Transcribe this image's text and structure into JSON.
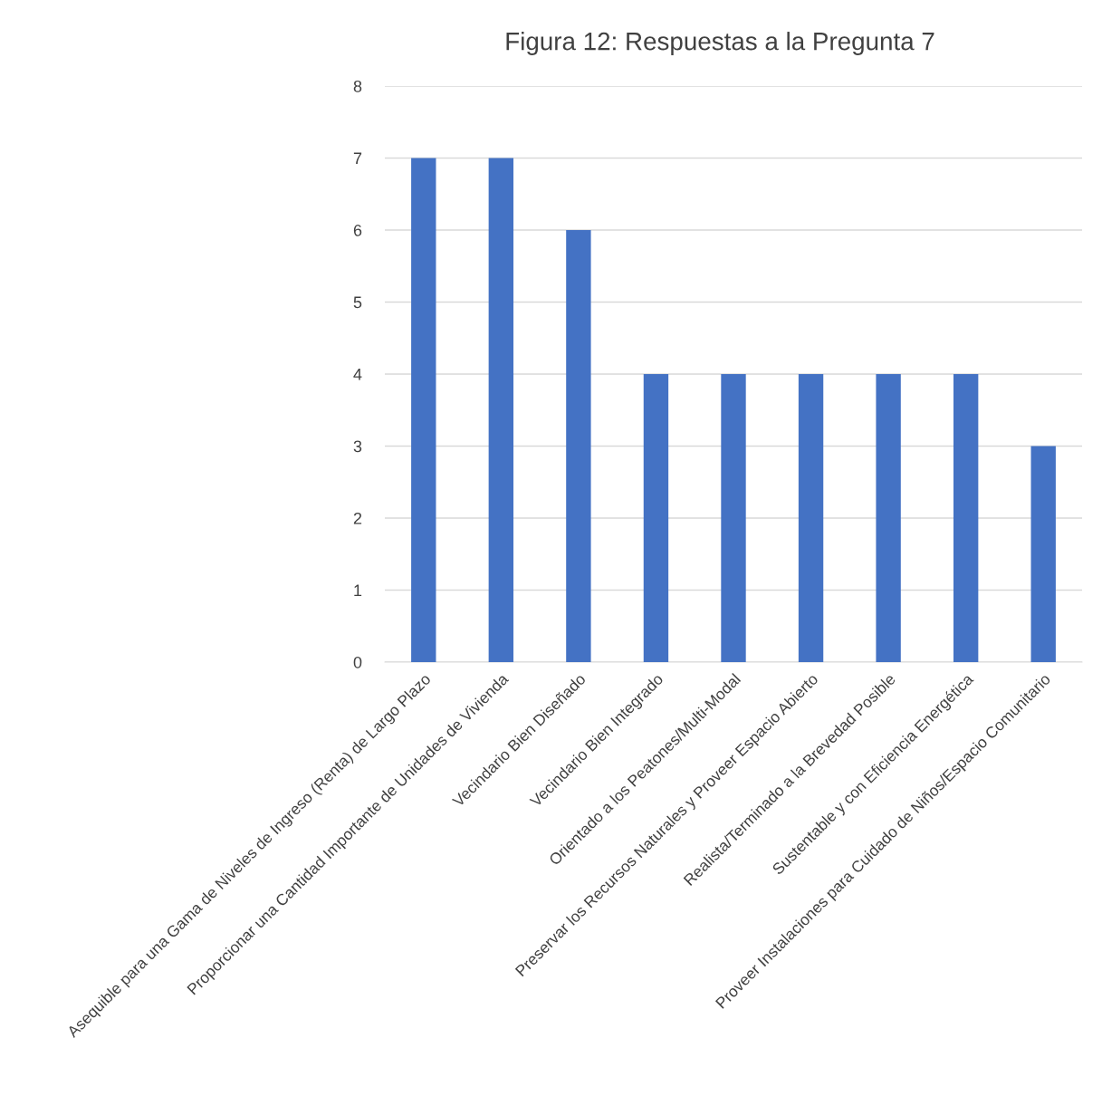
{
  "chart_data": {
    "type": "bar",
    "title": "Figura 12: Respuestas a la Pregunta 7",
    "categories": [
      "Asequible para una Gama de Niveles de Ingreso (Renta) de Largo Plazo",
      "Proporcionar una Cantidad Importante de Unidades de Vivienda",
      "Vecindario Bien Diseñado",
      "Vecindario Bien Integrado",
      "Orientado a los Peatones/Multi-Modal",
      "Preservar los Recursos Naturales y Proveer Espacio Abierto",
      "Realista/Terminado a la Brevedad Posible",
      "Sustentable y con Eficiencia Energética",
      "Proveer Instalaciones para Cuidado de Niños/Espacio Comunitario"
    ],
    "values": [
      7,
      7,
      6,
      4,
      4,
      4,
      4,
      4,
      3
    ],
    "color": "#4472c4",
    "ylim": [
      0,
      8
    ],
    "yticks": [
      0,
      1,
      2,
      3,
      4,
      5,
      6,
      7,
      8
    ],
    "grid": "y",
    "legend": false
  }
}
